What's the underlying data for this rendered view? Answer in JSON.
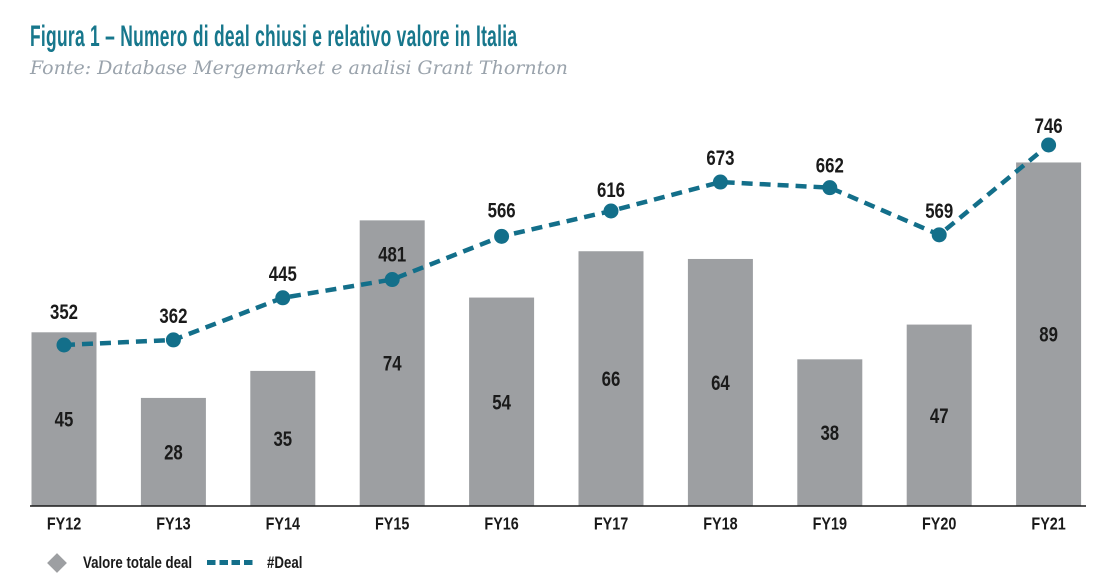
{
  "header": {
    "title": "Figura 1 – Numero di deal chiusi e relativo valore in Italia",
    "source": "Fonte: Database Mergemarket e analisi Grant Thornton"
  },
  "legend": {
    "bar_label": "Valore totale deal",
    "line_label": "#Deal",
    "position": "bottom-left"
  },
  "colors": {
    "bar": "#9D9FA2",
    "line": "#136F8A",
    "title": "#17778C",
    "source_text": "#9AA3AC",
    "label_text": "#1A1A1A",
    "axis": "#1A1A1A"
  },
  "chart_data": {
    "type": "bar",
    "subtype": "combo bar + dashed line, dual implicit axes",
    "title": "Figura 1 – Numero di deal chiusi e relativo valore in Italia",
    "xlabel": "",
    "ylabel": "",
    "categories": [
      "FY12",
      "FY13",
      "FY14",
      "FY15",
      "FY16",
      "FY17",
      "FY18",
      "FY19",
      "FY20",
      "FY21"
    ],
    "series": [
      {
        "name": "Valore totale deal",
        "type": "bar",
        "values": [
          45,
          28,
          35,
          74,
          54,
          66,
          64,
          38,
          47,
          89
        ],
        "label_placement": "centered inside bar"
      },
      {
        "name": "#Deal",
        "type": "line",
        "style": "dashed",
        "marker": "circle",
        "values": [
          352,
          362,
          445,
          481,
          566,
          616,
          673,
          662,
          569,
          746
        ],
        "label_placement": "above marker"
      }
    ],
    "value_labels_shown": true,
    "gridlines": false,
    "y_axis_ticks_visible": false,
    "legend_position": "bottom-left"
  }
}
